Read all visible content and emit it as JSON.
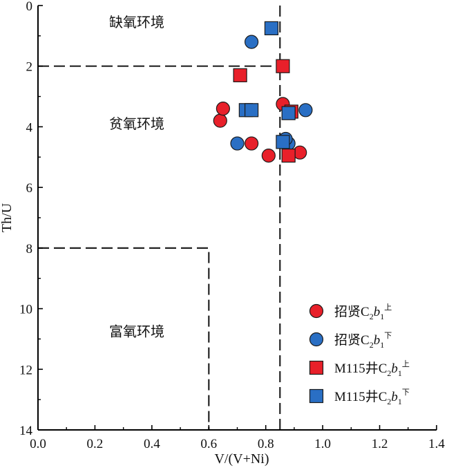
{
  "chart_data": {
    "type": "scatter",
    "xlabel": "V/(V+Ni)",
    "ylabel": "Th/U",
    "xlim": [
      0,
      1.4
    ],
    "ylim": [
      14,
      0
    ],
    "y_inverted": true,
    "xticks": [
      "0.0",
      "0.2",
      "0.4",
      "0.6",
      "0.8",
      "1.0",
      "1.2",
      "1.4"
    ],
    "yticks": [
      "0",
      "2",
      "4",
      "6",
      "8",
      "10",
      "12",
      "14"
    ],
    "regions": [
      {
        "label": "缺氧环境"
      },
      {
        "label": "贫氧环境"
      },
      {
        "label": "富氧环境"
      }
    ],
    "boundaries": [
      {
        "points": [
          [
            0,
            2
          ],
          [
            0.85,
            2
          ]
        ],
        "style": "dashed"
      },
      {
        "points": [
          [
            0.85,
            0
          ],
          [
            0.85,
            14
          ]
        ],
        "style": "dashed"
      },
      {
        "points": [
          [
            0,
            8
          ],
          [
            0.6,
            8
          ],
          [
            0.6,
            14
          ]
        ],
        "style": "dashed"
      }
    ],
    "series": [
      {
        "name": "招贤C₂b₁上",
        "legend": {
          "main": "招贤C",
          "sub1": "2",
          "italic": "b",
          "sub2": "1",
          "sup": "上"
        },
        "marker": "circle",
        "color": "#e8202a",
        "x": [
          0.64,
          0.65,
          0.75,
          0.81,
          0.86,
          0.92
        ],
        "y": [
          3.8,
          3.4,
          4.55,
          4.95,
          3.25,
          4.85
        ]
      },
      {
        "name": "招贤C₂b₁下",
        "legend": {
          "main": "招贤C",
          "sub1": "2",
          "italic": "b",
          "sub2": "1",
          "sup": "下"
        },
        "marker": "circle",
        "color": "#2a6fc4",
        "x": [
          0.75,
          0.7,
          0.88,
          0.87,
          0.94
        ],
        "y": [
          1.2,
          4.55,
          4.55,
          4.4,
          3.45
        ]
      },
      {
        "name": "M115井C₂b₁上",
        "legend": {
          "main": "M115井C",
          "sub1": "2",
          "italic": "b",
          "sub2": "1",
          "sup": "上"
        },
        "marker": "square",
        "color": "#e8202a",
        "x": [
          0.71,
          0.86,
          0.89,
          0.88
        ],
        "y": [
          2.3,
          2.0,
          3.5,
          4.95
        ]
      },
      {
        "name": "M115井C₂b₁下",
        "legend": {
          "main": "M115井C",
          "sub1": "2",
          "italic": "b",
          "sub2": "1",
          "sup": "下"
        },
        "marker": "square",
        "color": "#2a6fc4",
        "x": [
          0.82,
          0.73,
          0.75,
          0.88,
          0.86
        ],
        "y": [
          0.75,
          3.45,
          3.45,
          3.55,
          4.5
        ]
      }
    ]
  }
}
